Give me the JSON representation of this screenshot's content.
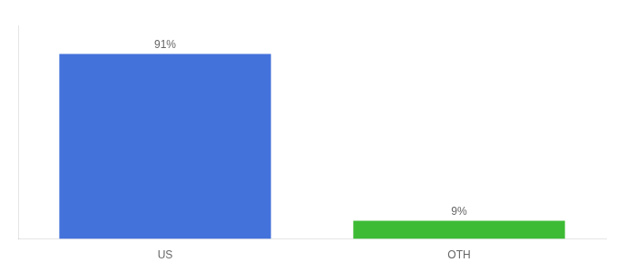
{
  "chart_data": {
    "type": "bar",
    "categories": [
      "US",
      "OTH"
    ],
    "values": [
      91,
      9
    ],
    "value_labels": [
      "91%",
      "9%"
    ],
    "colors": [
      "#4472db",
      "#3dbb35"
    ],
    "ylim": [
      0,
      105
    ],
    "grid": false,
    "data_labels": true,
    "tick_labels": "x"
  }
}
